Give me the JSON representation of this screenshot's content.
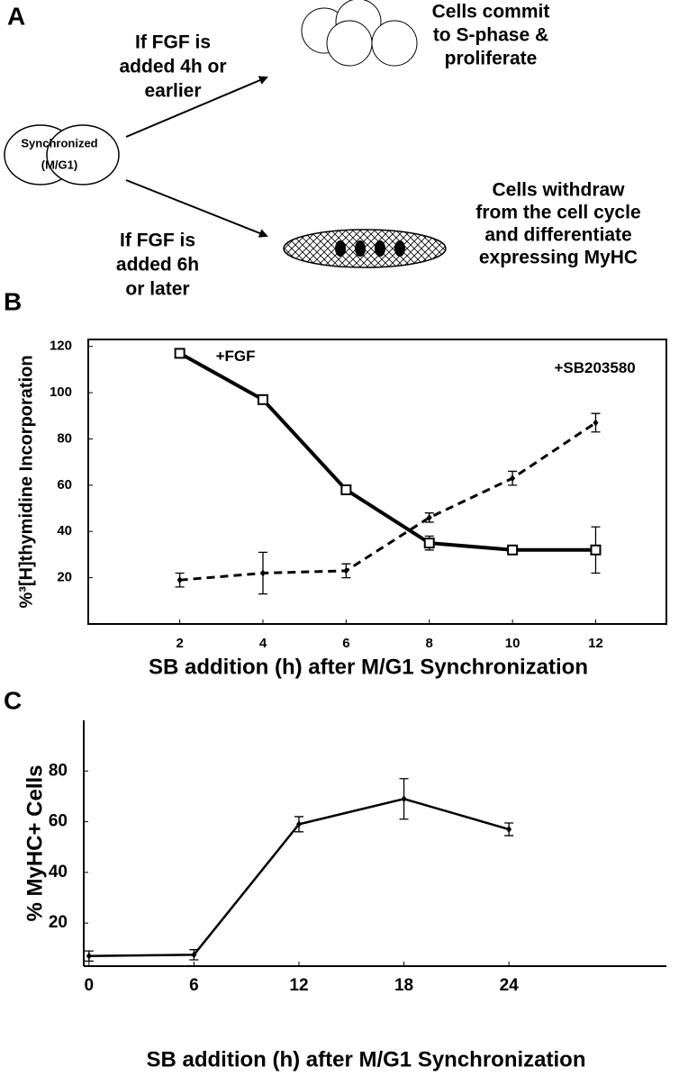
{
  "panel_a": {
    "label": "A",
    "start_lines": [
      "Synchronized",
      "(M/G1)"
    ],
    "early_lines": [
      "If FGF is",
      "added 4h or",
      "earlier"
    ],
    "early_result_lines": [
      "Cells commit",
      "to S-phase &",
      "proliferate"
    ],
    "late_lines": [
      "If FGF is",
      "added 6h",
      "or later"
    ],
    "late_result_lines": [
      "Cells withdraw",
      "from the cell cycle",
      "and differentiate",
      "expressing MyHC"
    ]
  },
  "chart_data": [
    {
      "type": "line",
      "panel": "B",
      "xlabel": "SB addition (h) after M/G1 Synchronization",
      "ylabel": "%³[H]thymidine Incorporation",
      "x": [
        2,
        4,
        6,
        8,
        10,
        12
      ],
      "xlim": [
        -0.2,
        13.7
      ],
      "xticks": [
        2,
        4,
        6,
        8,
        10,
        12
      ],
      "ylim": [
        0,
        123
      ],
      "yticks": [
        20,
        40,
        60,
        80,
        100,
        120
      ],
      "frame": true,
      "series": [
        {
          "name": "+FGF",
          "color": "#000000",
          "line_style": "solid",
          "marker": "square",
          "values": [
            117,
            97,
            58,
            35,
            32,
            32
          ],
          "errors": [
            1,
            1,
            1,
            3,
            1,
            10
          ]
        },
        {
          "name": "+SB203580",
          "color": "#000000",
          "line_style": "dashed",
          "marker": "diamond",
          "values": [
            19,
            22,
            23,
            46,
            63,
            87
          ],
          "errors": [
            3,
            9,
            3,
            2,
            3,
            4
          ]
        }
      ]
    },
    {
      "type": "line",
      "panel": "C",
      "xlabel": "SB addition (h) after M/G1 Synchronization",
      "ylabel": "% MyHC+ Cells",
      "x": [
        0,
        6,
        12,
        18,
        24
      ],
      "xlim": [
        -0.3,
        33
      ],
      "xticks": [
        0,
        6,
        12,
        18,
        24
      ],
      "ylim": [
        3,
        100
      ],
      "yticks": [
        20,
        40,
        60,
        80
      ],
      "frame": false,
      "series": [
        {
          "color": "#000000",
          "line_style": "solid",
          "marker": "diamond",
          "values": [
            7,
            7.5,
            59,
            69,
            57
          ],
          "errors": [
            2,
            2,
            3,
            8,
            2.5
          ]
        }
      ]
    }
  ]
}
